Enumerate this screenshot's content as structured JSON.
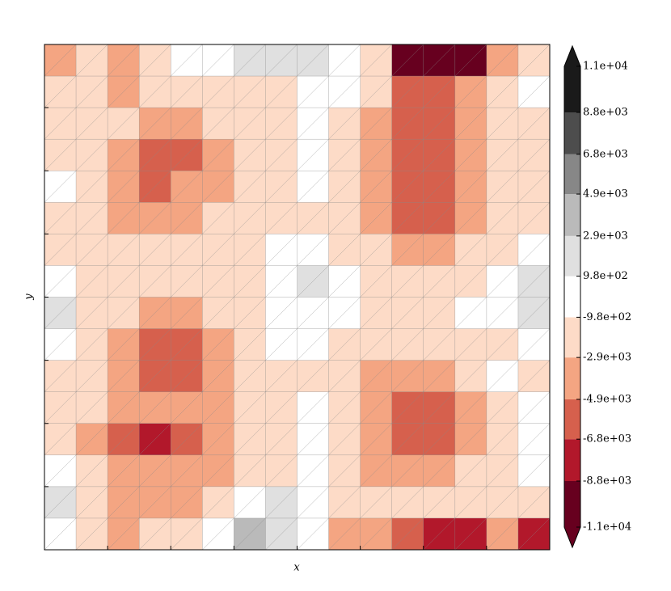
{
  "chart_data": {
    "type": "contour",
    "x_label": "x",
    "y_label": "y",
    "z": [
      [
        -3000,
        -2000,
        -3000,
        -2000,
        0,
        500,
        2000,
        2500,
        1500,
        0,
        -2000,
        -9000,
        -10000,
        -9000,
        -3000,
        -2000
      ],
      [
        -2000,
        -2000,
        -3500,
        -2000,
        -2000,
        -1500,
        -1500,
        -1500,
        0,
        0,
        -2000,
        -6000,
        -6000,
        -3500,
        -2000,
        0
      ],
      [
        -1500,
        -1500,
        -2000,
        -3500,
        -3500,
        -2000,
        -1500,
        -1500,
        0,
        -1500,
        -3500,
        -6000,
        -6000,
        -3500,
        -2000,
        -1500
      ],
      [
        -1500,
        -2000,
        -3500,
        -6000,
        -6000,
        -3500,
        -2000,
        -1500,
        0,
        -1500,
        -3500,
        -6000,
        -6000,
        -3500,
        -2000,
        -1500
      ],
      [
        0,
        -2000,
        -3500,
        -5500,
        -4500,
        -3000,
        -2000,
        -1500,
        -500,
        -1500,
        -3500,
        -6000,
        -6000,
        -3500,
        -2000,
        -1500
      ],
      [
        -1500,
        -1500,
        -3500,
        -3000,
        -3000,
        -2000,
        -1500,
        -1500,
        -1500,
        -1500,
        -3500,
        -6000,
        -5500,
        -3500,
        -2000,
        -1500
      ],
      [
        -1000,
        -1500,
        -1500,
        -1500,
        -1500,
        -1500,
        -1500,
        -500,
        0,
        -1500,
        -2000,
        -3500,
        -3500,
        -2000,
        -1500,
        0
      ],
      [
        0,
        -1500,
        -2000,
        -1500,
        -1500,
        -1500,
        -1500,
        0,
        1500,
        500,
        -2000,
        -2000,
        -2000,
        -1500,
        0,
        2000
      ],
      [
        2000,
        -1500,
        -2000,
        -3500,
        -3500,
        -2000,
        -1500,
        0,
        500,
        0,
        -1500,
        -1500,
        -1500,
        -500,
        0,
        2000
      ],
      [
        0,
        -1500,
        -3500,
        -5500,
        -5500,
        -3500,
        -2000,
        -500,
        -500,
        -1500,
        -1500,
        -1500,
        -1500,
        -1500,
        -1500,
        0
      ],
      [
        -1500,
        -1500,
        -3000,
        -6000,
        -6000,
        -3500,
        -2000,
        -1500,
        -1500,
        -1500,
        -3500,
        -3500,
        -3000,
        -2000,
        0,
        -1500
      ],
      [
        -1500,
        -1500,
        -3000,
        -3500,
        -3500,
        -3500,
        -1500,
        -1500,
        0,
        -1500,
        -3500,
        -5500,
        -5500,
        -3500,
        -1500,
        0
      ],
      [
        -1500,
        -3000,
        -5500,
        -7500,
        -5500,
        -3500,
        -1500,
        -1000,
        0,
        -1500,
        -3500,
        -5500,
        -5000,
        -3500,
        -1500,
        -500
      ],
      [
        0,
        -1500,
        -3000,
        -3500,
        -3500,
        -3000,
        -1500,
        -1500,
        -500,
        -1500,
        -3000,
        -3500,
        -3000,
        -2000,
        -1500,
        0
      ],
      [
        1500,
        -1500,
        -3000,
        -3000,
        -3000,
        -1500,
        0,
        1500,
        -500,
        -1500,
        -1500,
        -2000,
        -2000,
        -1500,
        -1500,
        -1500
      ],
      [
        -500,
        -1500,
        -3000,
        -2500,
        -1500,
        0,
        3000,
        1500,
        0,
        -3000,
        -4000,
        -6000,
        -8000,
        -7500,
        -3500,
        -7000
      ]
    ],
    "clim": [
      -11000,
      11000
    ],
    "cticks": [
      {
        "value": -11000,
        "label": "-1.1e+04"
      },
      {
        "value": -8800,
        "label": "-8.8e+03"
      },
      {
        "value": -6800,
        "label": "-6.8e+03"
      },
      {
        "value": -4900,
        "label": "-4.9e+03"
      },
      {
        "value": -2900,
        "label": "-2.9e+03"
      },
      {
        "value": -980,
        "label": "-9.8e+02"
      },
      {
        "value": 980,
        "label": "9.8e+02"
      },
      {
        "value": 2900,
        "label": "2.9e+03"
      },
      {
        "value": 4900,
        "label": "4.9e+03"
      },
      {
        "value": 6800,
        "label": "6.8e+03"
      },
      {
        "value": 8800,
        "label": "8.8e+03"
      },
      {
        "value": 11000,
        "label": "1.1e+04"
      }
    ],
    "colors": [
      "#67001f",
      "#b2182b",
      "#d6604d",
      "#f4a582",
      "#fddbc7",
      "#ffffff",
      "#e0e0e0",
      "#bababa",
      "#878787",
      "#4d4d4d",
      "#1a1a1a"
    ]
  }
}
